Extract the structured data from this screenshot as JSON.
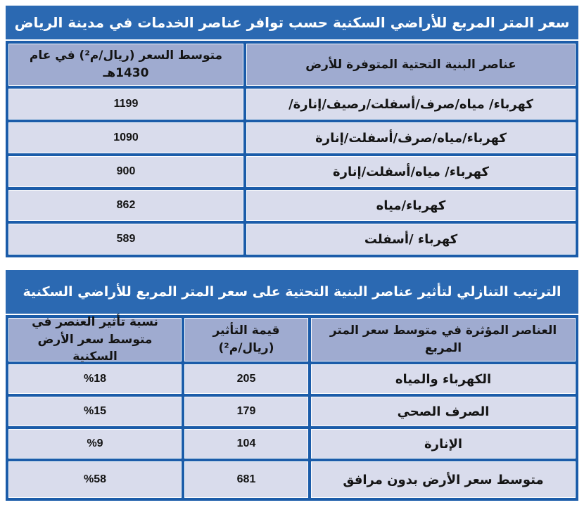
{
  "colors": {
    "title_bar_blue": "#2b69b2",
    "grid_line_blue": "#1b5ca9",
    "header_cell_bg": "#9fabd0",
    "data_cell_bg": "#d9dcec",
    "title_text": "#ffffff",
    "cell_text": "#141414"
  },
  "table1": {
    "title": "سعر المتر المربع للأراضي السكنية حسب توافر عناصر الخدمات في مدينة الرياض",
    "header": {
      "elements": "عناصر البنية التحتية المتوفرة للأرض",
      "price_line1": "متوسط السعر (ريال/م²) في عام",
      "price_line2": "1430هـ"
    },
    "rows": [
      {
        "elements": "كهرباء/ مياه/صرف/أسفلت/رصيف/إنارة/",
        "price": "1199"
      },
      {
        "elements": "كهرباء/مياه/صرف/أسفلت/إنارة",
        "price": "1090"
      },
      {
        "elements": "كهرباء/ مياه/أسفلت/إنارة",
        "price": "900"
      },
      {
        "elements": "كهرباء/مياه",
        "price": "862"
      },
      {
        "elements": "كهرباء /أسفلت",
        "price": "589"
      }
    ]
  },
  "table2": {
    "title": "الترتيب التنازلي لتأثير عناصر البنية التحتية على سعر المتر المربع للأراضي السكنية",
    "header": {
      "element_line1": "العناصر المؤثرة في متوسط سعر المتر",
      "element_line2": "المربع",
      "value_line1": "قيمة التأثير",
      "value_line2": "(ريال/م²)",
      "percent_line1": "نسبة تأثير العنصر في",
      "percent_line2": "متوسط سعر الأرض السكنية"
    },
    "rows": [
      {
        "element": "الكهرباء والمياه",
        "value": "205",
        "percent": "%18"
      },
      {
        "element": "الصرف الصحي",
        "value": "179",
        "percent": "%15"
      },
      {
        "element": "الإنارة",
        "value": "104",
        "percent": "%9"
      },
      {
        "element": "متوسط سعر الأرض بدون مرافق",
        "value": "681",
        "percent": "%58"
      }
    ]
  }
}
